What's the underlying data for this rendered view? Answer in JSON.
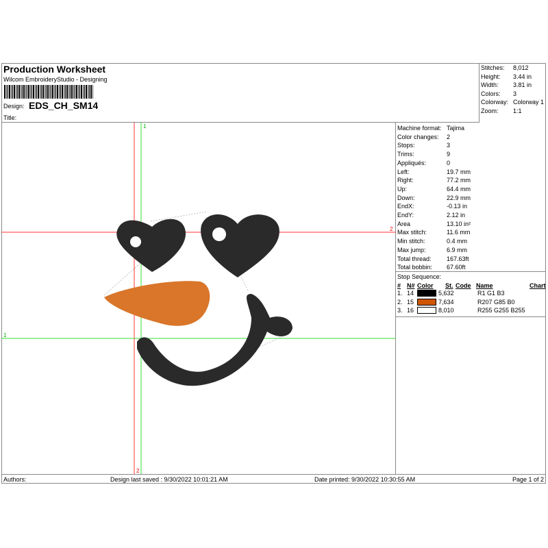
{
  "header": {
    "title": "Production Worksheet",
    "software": "Wilcom EmbroideryStudio - Designing",
    "design_label": "Design:",
    "design_name": "EDS_CH_SM14",
    "title_label": "Title:"
  },
  "stats": [
    {
      "k": "Stitches:",
      "v": "8,012"
    },
    {
      "k": "Height:",
      "v": "3.44 in"
    },
    {
      "k": "Width:",
      "v": "3.81 in"
    },
    {
      "k": "Colors:",
      "v": "3"
    },
    {
      "k": "Colorway:",
      "v": "Colorway 1"
    },
    {
      "k": "Zoom:",
      "v": "1:1"
    }
  ],
  "info": [
    {
      "k": "Machine format:",
      "v": "Tajima"
    },
    {
      "k": "Color changes:",
      "v": "2"
    },
    {
      "k": "Stops:",
      "v": "3"
    },
    {
      "k": "Trims:",
      "v": "9"
    },
    {
      "k": "Appliqués:",
      "v": "0"
    },
    {
      "k": "Left:",
      "v": "19.7 mm"
    },
    {
      "k": "Right:",
      "v": "77.2 mm"
    },
    {
      "k": "Up:",
      "v": "64.4 mm"
    },
    {
      "k": "Down:",
      "v": "22.9 mm"
    },
    {
      "k": "EndX:",
      "v": "-0.13 in"
    },
    {
      "k": "EndY:",
      "v": "2.12 in"
    },
    {
      "k": "Area",
      "v": " 13.10 in²"
    },
    {
      "k": "Max stitch:",
      "v": "11.6 mm"
    },
    {
      "k": "Min stitch:",
      "v": "0.4 mm"
    },
    {
      "k": "Max jump:",
      "v": "6.9 mm"
    },
    {
      "k": "Total thread:",
      "v": "167.63ft"
    },
    {
      "k": "Total bobbin:",
      "v": "67.60ft"
    }
  ],
  "stop_sequence": {
    "title": "Stop Sequence:",
    "headers": {
      "num": "#",
      "n": "N#",
      "color": "Color",
      "st": "St.",
      "code": "Code",
      "name": "Name",
      "chart": "Chart"
    },
    "rows": [
      {
        "num": "1.",
        "n": "14",
        "color": "#010103",
        "st": "5,632",
        "name": "R1 G1 B3"
      },
      {
        "num": "2.",
        "n": "15",
        "color": "#CF5500",
        "st": "7,634",
        "name": "R207 G85 B0"
      },
      {
        "num": "3.",
        "n": "16",
        "color": "#FFFFFF",
        "st": "8,010",
        "name": "R255 G255 B255"
      }
    ]
  },
  "canvas": {
    "marker_top": "1",
    "marker_right": "2",
    "marker_left": "1",
    "marker_bottom": "2"
  },
  "footer": {
    "authors": "Authors:",
    "saved": "Design last saved : 9/30/2022 10:01:21 AM",
    "printed": "Date printed: 9/30/2022 10:30:55 AM",
    "page": "Page 1 of 2"
  }
}
